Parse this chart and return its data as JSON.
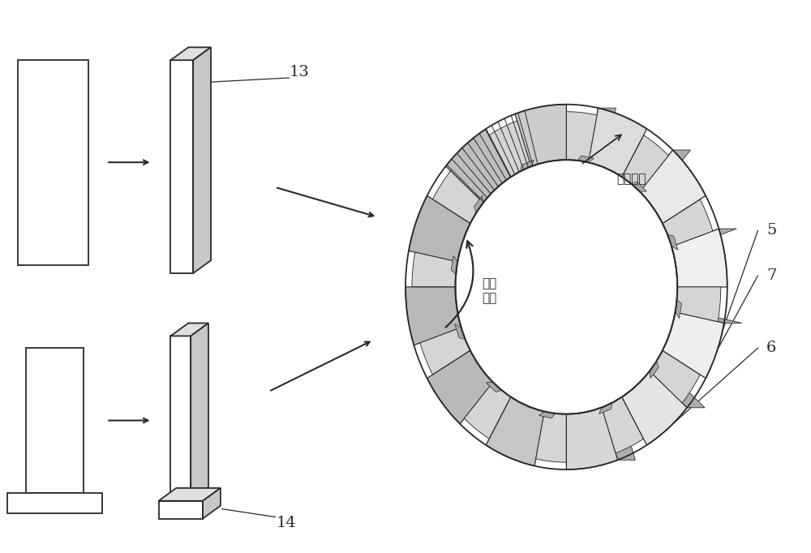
{
  "bg_color": "#ffffff",
  "line_color": "#2a2a2a",
  "line_width": 1.3,
  "thin_line": 0.9,
  "fig_width": 10.0,
  "fig_height": 6.82,
  "label_13": "13",
  "label_14": "14",
  "label_5": "5",
  "label_7": "7",
  "label_6": "6",
  "text_lamination": "叠片方向",
  "text_eddy": "涡流\n方向",
  "font_size": 11,
  "label_font_size": 14,
  "gray_side": "#c8c8c8",
  "gray_top": "#e0e0e0",
  "gray_face": "#f0f0f0",
  "white": "#ffffff"
}
